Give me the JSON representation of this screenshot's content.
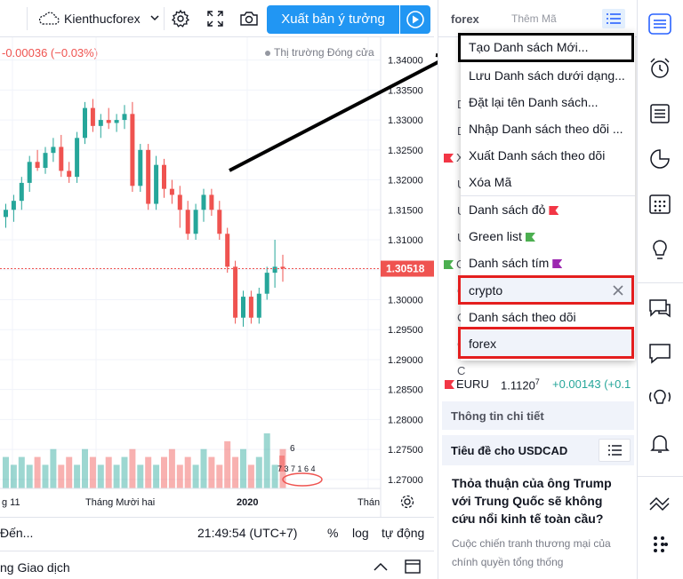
{
  "toolbar": {
    "layout_name": "Kienthucforex",
    "publish_label": "Xuất bản ý tưởng"
  },
  "chart": {
    "price_change": "-0.00036 (−0.03%)",
    "market_status": "Thị trường Đóng cửa",
    "current_price": "1.30518",
    "volume_labels": [
      "6",
      "7 3 7 1 6 4"
    ]
  },
  "chart_data": {
    "type": "candlestick",
    "title": "",
    "y_ticks": [
      "1.34000",
      "1.33500",
      "1.33000",
      "1.32500",
      "1.32000",
      "1.31500",
      "1.31000",
      "1.30500",
      "1.30000",
      "1.29500",
      "1.29000",
      "1.28500",
      "1.28000",
      "1.27500",
      "1.27000"
    ],
    "y_tick_values": [
      1.34,
      1.335,
      1.33,
      1.325,
      1.32,
      1.315,
      1.31,
      1.305,
      1.3,
      1.295,
      1.29,
      1.285,
      1.28,
      1.275,
      1.27
    ],
    "ylim": [
      1.2685,
      1.3435
    ],
    "x_ticks": [
      "g 11",
      "Tháng Mười hai",
      "2020",
      "Thán"
    ],
    "last_price": 1.30518,
    "candles": [
      {
        "o": 1.3138,
        "h": 1.316,
        "l": 1.312,
        "c": 1.315
      },
      {
        "o": 1.315,
        "h": 1.3175,
        "l": 1.313,
        "c": 1.3165
      },
      {
        "o": 1.3165,
        "h": 1.3205,
        "l": 1.315,
        "c": 1.3195
      },
      {
        "o": 1.3195,
        "h": 1.324,
        "l": 1.318,
        "c": 1.323
      },
      {
        "o": 1.323,
        "h": 1.325,
        "l": 1.3215,
        "c": 1.322
      },
      {
        "o": 1.322,
        "h": 1.3255,
        "l": 1.321,
        "c": 1.3245
      },
      {
        "o": 1.3245,
        "h": 1.327,
        "l": 1.323,
        "c": 1.3255
      },
      {
        "o": 1.3255,
        "h": 1.3275,
        "l": 1.3205,
        "c": 1.3215
      },
      {
        "o": 1.3215,
        "h": 1.323,
        "l": 1.3195,
        "c": 1.3205
      },
      {
        "o": 1.3205,
        "h": 1.328,
        "l": 1.3195,
        "c": 1.327
      },
      {
        "o": 1.327,
        "h": 1.333,
        "l": 1.326,
        "c": 1.332
      },
      {
        "o": 1.332,
        "h": 1.3335,
        "l": 1.328,
        "c": 1.329
      },
      {
        "o": 1.329,
        "h": 1.331,
        "l": 1.327,
        "c": 1.33
      },
      {
        "o": 1.33,
        "h": 1.332,
        "l": 1.3285,
        "c": 1.3295
      },
      {
        "o": 1.3295,
        "h": 1.331,
        "l": 1.328,
        "c": 1.33
      },
      {
        "o": 1.33,
        "h": 1.3325,
        "l": 1.3285,
        "c": 1.331
      },
      {
        "o": 1.331,
        "h": 1.333,
        "l": 1.318,
        "c": 1.319
      },
      {
        "o": 1.319,
        "h": 1.326,
        "l": 1.318,
        "c": 1.325
      },
      {
        "o": 1.325,
        "h": 1.326,
        "l": 1.315,
        "c": 1.316
      },
      {
        "o": 1.316,
        "h": 1.324,
        "l": 1.315,
        "c": 1.3225
      },
      {
        "o": 1.3225,
        "h": 1.3235,
        "l": 1.317,
        "c": 1.3185
      },
      {
        "o": 1.3185,
        "h": 1.32,
        "l": 1.316,
        "c": 1.3175
      },
      {
        "o": 1.3175,
        "h": 1.319,
        "l": 1.312,
        "c": 1.315
      },
      {
        "o": 1.315,
        "h": 1.3165,
        "l": 1.31,
        "c": 1.311
      },
      {
        "o": 1.311,
        "h": 1.316,
        "l": 1.31,
        "c": 1.315
      },
      {
        "o": 1.315,
        "h": 1.3185,
        "l": 1.313,
        "c": 1.3175
      },
      {
        "o": 1.3175,
        "h": 1.3185,
        "l": 1.314,
        "c": 1.315
      },
      {
        "o": 1.315,
        "h": 1.3165,
        "l": 1.31,
        "c": 1.311
      },
      {
        "o": 1.311,
        "h": 1.312,
        "l": 1.3045,
        "c": 1.3055
      },
      {
        "o": 1.3055,
        "h": 1.3065,
        "l": 1.296,
        "c": 1.297
      },
      {
        "o": 1.297,
        "h": 1.3015,
        "l": 1.2955,
        "c": 1.3005
      },
      {
        "o": 1.3005,
        "h": 1.3015,
        "l": 1.296,
        "c": 1.297
      },
      {
        "o": 1.297,
        "h": 1.302,
        "l": 1.296,
        "c": 1.301
      },
      {
        "o": 1.301,
        "h": 1.3055,
        "l": 1.3,
        "c": 1.3045
      },
      {
        "o": 1.3045,
        "h": 1.31,
        "l": 1.302,
        "c": 1.3055
      },
      {
        "o": 1.3055,
        "h": 1.3075,
        "l": 1.303,
        "c": 1.3052
      }
    ],
    "volumes": [
      4,
      3,
      4,
      3,
      4,
      3,
      5,
      3,
      4,
      3,
      5,
      4,
      3,
      4,
      3,
      4,
      5,
      3,
      4,
      3,
      4,
      5,
      3,
      4,
      3,
      5,
      4,
      3,
      6,
      4,
      5,
      3,
      4,
      7,
      3,
      5
    ]
  },
  "timebar": {
    "goto_label": "Đến...",
    "clock": "21:49:54 (UTC+7)",
    "percent_label": "%",
    "log_label": "log",
    "auto_label": "tự động"
  },
  "bottom_tabs": {
    "trading_label": "ng Giao dịch"
  },
  "watchlist": {
    "name": "forex",
    "add_symbol_placeholder": "Thêm Mã",
    "partial_left": [
      "M",
      "D",
      "D",
      "X",
      "U",
      "U",
      "U",
      "G",
      "G",
      "C",
      "C",
      "C",
      "C"
    ],
    "row_eur": {
      "symbol": "EURU",
      "price": "1.1120",
      "price_sup": "7",
      "change": "+0.00143",
      "change_pct": "(+0.1"
    }
  },
  "menu": {
    "items": [
      "Tạo Danh sách Mới...",
      "Lưu Danh sách dưới dạng...",
      "Đặt lại tên Danh sách...",
      "Nhập Danh sách theo dõi ...",
      "Xuất Danh sách theo dõi",
      "Xóa Mã"
    ],
    "flag_lists": [
      {
        "label": "Danh sách đỏ",
        "color": "#f23645"
      },
      {
        "label": "Green list",
        "color": "#4caf50"
      },
      {
        "label": "Danh sách tím",
        "color": "#9c27b0"
      }
    ],
    "lists": [
      "crypto",
      "Danh sách theo dõi",
      "forex"
    ]
  },
  "details": {
    "header": "Thông tin chi tiết",
    "news_header": "Tiêu đề cho USDCAD",
    "headline": "Thỏa thuận của ông Trump với Trung Quốc sẽ không cứu nổi kinh tế toàn cầu?",
    "snippet": "Cuộc chiến tranh thương mại của chính quyền tổng thống"
  },
  "colors": {
    "accent": "#2196f3",
    "up": "#26a69a",
    "down": "#ef5350",
    "annotation_red": "#e41e1e"
  }
}
